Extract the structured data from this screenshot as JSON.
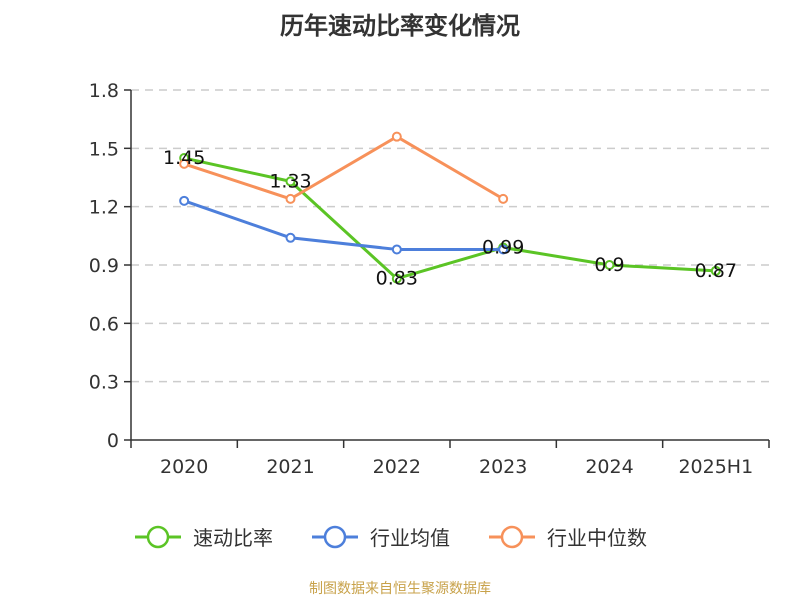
{
  "source_note": "制图数据来自恒生聚源数据库",
  "colors": {
    "axis": "#333333",
    "grid": "#cccccc"
  },
  "chart_data": {
    "type": "line",
    "title": "历年速动比率变化情况",
    "categories": [
      "2020",
      "2021",
      "2022",
      "2023",
      "2024",
      "2025H1"
    ],
    "ylim": [
      0,
      1.8
    ],
    "yticks": [
      0,
      0.3,
      0.6,
      0.9,
      1.2,
      1.5,
      1.8
    ],
    "ytick_labels": [
      "0",
      "0.3",
      "0.6",
      "0.9",
      "1.2",
      "1.5",
      "1.8"
    ],
    "grid": true,
    "legend_position": "bottom",
    "series": [
      {
        "name": "速动比率",
        "color": "#5bc425",
        "values": [
          1.45,
          1.33,
          0.83,
          0.99,
          0.9,
          0.87
        ],
        "labels": [
          "1.45",
          "1.33",
          "0.83",
          "0.99",
          "0.9",
          "0.87"
        ]
      },
      {
        "name": "行业均值",
        "color": "#4d7fdb",
        "values": [
          1.23,
          1.04,
          0.98,
          0.98,
          null,
          null
        ]
      },
      {
        "name": "行业中位数",
        "color": "#f7915a",
        "values": [
          1.42,
          1.24,
          1.56,
          1.24,
          null,
          null
        ]
      }
    ]
  }
}
